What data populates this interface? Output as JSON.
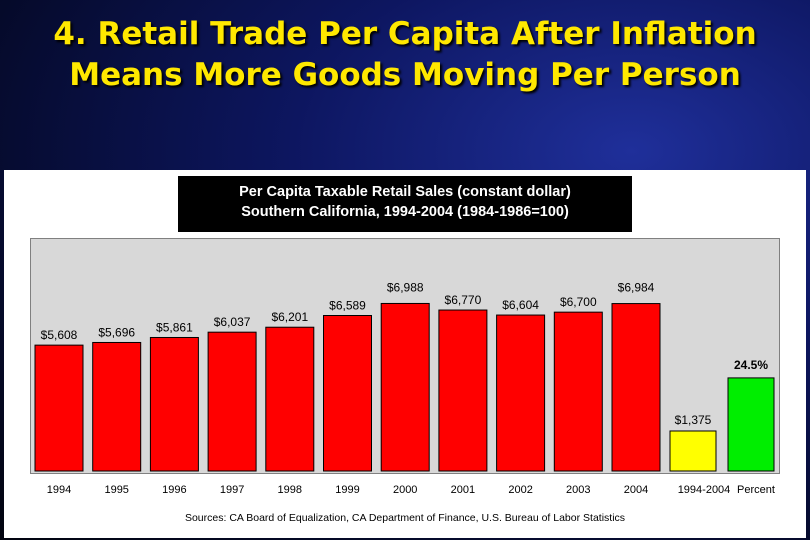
{
  "header": {
    "title_line1": "4. Retail Trade Per Capita After Inflation",
    "title_line2": "Means More Goods Moving Per Person"
  },
  "chart_data": {
    "type": "bar",
    "title": "Per Capita Taxable Retail Sales (constant dollar)",
    "subtitle": "Southern California, 1994-2004 (1984-1986=100)",
    "categories": [
      "1994",
      "1995",
      "1996",
      "1997",
      "1998",
      "1999",
      "2000",
      "2001",
      "2002",
      "2003",
      "2004"
    ],
    "values": [
      5608,
      5696,
      5861,
      6037,
      6201,
      6589,
      6988,
      6770,
      6604,
      6700,
      6984
    ],
    "value_labels": [
      "$5,608",
      "$5,696",
      "$5,861",
      "$6,037",
      "$6,201",
      "$6,589",
      "$6,988",
      "$6,770",
      "$6,604",
      "$6,700",
      "$6,984"
    ],
    "bar_color": "#ff0000",
    "extra_bars": [
      {
        "category": "1994-2004",
        "value": 1375,
        "value_label": "$1,375",
        "color": "#ffff00"
      },
      {
        "category": "Percent",
        "value": 24.5,
        "value_label": "24.5%",
        "color": "#00ee00"
      }
    ],
    "grid": false,
    "source": "Sources:  CA Board of Equalization, CA Department of Finance, U.S. Bureau of Labor Statistics"
  }
}
